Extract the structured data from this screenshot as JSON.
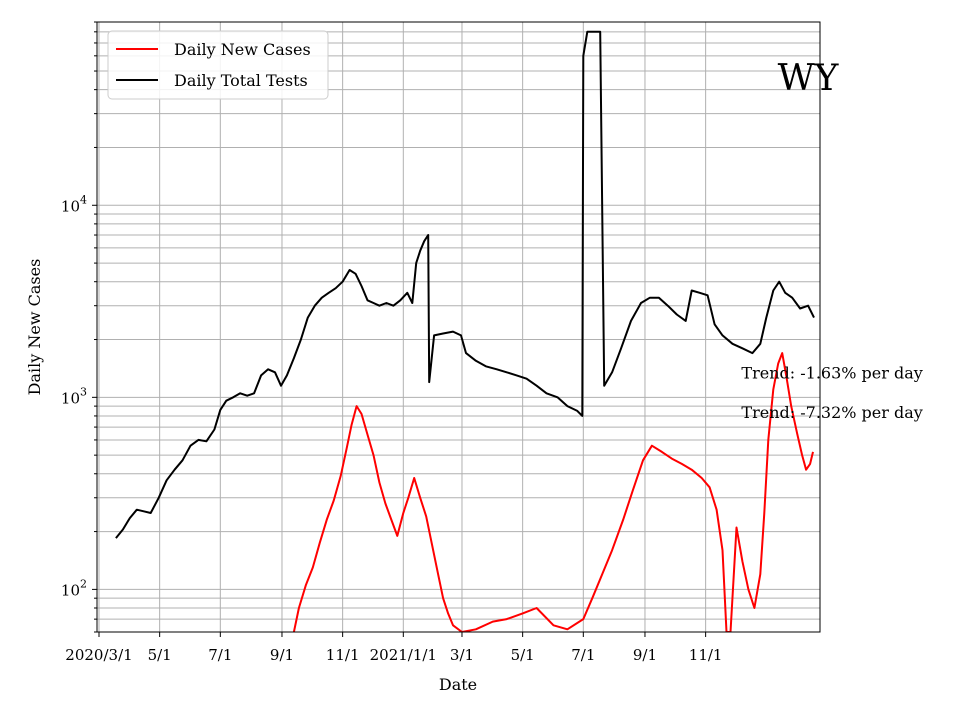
{
  "chart_data": {
    "type": "line",
    "title": "",
    "state_label": "WY",
    "xlabel": "Date",
    "ylabel": "Daily New Cases",
    "y_scale": "log",
    "ylim": [
      60,
      90000
    ],
    "xlim": [
      "2020-02-28",
      "2022-02-24"
    ],
    "grid": true,
    "legend_position": "top-left",
    "x_ticks": [
      {
        "date": "2020-03-01",
        "label": "2020/3/1"
      },
      {
        "date": "2020-05-01",
        "label": "5/1"
      },
      {
        "date": "2020-07-01",
        "label": "7/1"
      },
      {
        "date": "2020-09-01",
        "label": "9/1"
      },
      {
        "date": "2020-11-01",
        "label": "11/1"
      },
      {
        "date": "2021-01-01",
        "label": "2021/1/1"
      },
      {
        "date": "2021-03-01",
        "label": "3/1"
      },
      {
        "date": "2021-05-01",
        "label": "5/1"
      },
      {
        "date": "2021-07-01",
        "label": "7/1"
      },
      {
        "date": "2021-09-01",
        "label": "9/1"
      },
      {
        "date": "2021-11-01",
        "label": "11/1"
      }
    ],
    "y_major_ticks": [
      {
        "value": 100,
        "base": "10",
        "exp": "2"
      },
      {
        "value": 1000,
        "base": "10",
        "exp": "3"
      },
      {
        "value": 10000,
        "base": "10",
        "exp": "4"
      }
    ],
    "series": [
      {
        "name": "Daily New Cases",
        "color": "#ff0000",
        "points": [
          [
            "2020-09-13",
            60
          ],
          [
            "2020-09-18",
            80
          ],
          [
            "2020-09-25",
            105
          ],
          [
            "2020-10-02",
            130
          ],
          [
            "2020-10-09",
            175
          ],
          [
            "2020-10-16",
            230
          ],
          [
            "2020-10-23",
            290
          ],
          [
            "2020-10-30",
            390
          ],
          [
            "2020-11-05",
            540
          ],
          [
            "2020-11-10",
            720
          ],
          [
            "2020-11-15",
            900
          ],
          [
            "2020-11-20",
            820
          ],
          [
            "2020-11-26",
            640
          ],
          [
            "2020-12-02",
            500
          ],
          [
            "2020-12-08",
            360
          ],
          [
            "2020-12-14",
            280
          ],
          [
            "2020-12-20",
            230
          ],
          [
            "2020-12-26",
            190
          ],
          [
            "2021-01-01",
            250
          ],
          [
            "2021-01-06",
            300
          ],
          [
            "2021-01-12",
            380
          ],
          [
            "2021-01-18",
            300
          ],
          [
            "2021-01-24",
            240
          ],
          [
            "2021-01-30",
            170
          ],
          [
            "2021-02-05",
            120
          ],
          [
            "2021-02-10",
            90
          ],
          [
            "2021-02-15",
            75
          ],
          [
            "2021-02-20",
            65
          ],
          [
            "2021-03-01",
            60
          ],
          [
            "2021-03-15",
            62
          ],
          [
            "2021-04-01",
            68
          ],
          [
            "2021-04-15",
            70
          ],
          [
            "2021-05-01",
            75
          ],
          [
            "2021-05-15",
            80
          ],
          [
            "2021-06-01",
            65
          ],
          [
            "2021-06-15",
            62
          ],
          [
            "2021-07-01",
            70
          ],
          [
            "2021-07-10",
            90
          ],
          [
            "2021-07-20",
            120
          ],
          [
            "2021-07-30",
            160
          ],
          [
            "2021-08-10",
            230
          ],
          [
            "2021-08-20",
            330
          ],
          [
            "2021-08-30",
            470
          ],
          [
            "2021-09-08",
            560
          ],
          [
            "2021-09-18",
            520
          ],
          [
            "2021-09-28",
            480
          ],
          [
            "2021-10-08",
            450
          ],
          [
            "2021-10-18",
            420
          ],
          [
            "2021-10-28",
            380
          ],
          [
            "2021-11-05",
            340
          ],
          [
            "2021-11-12",
            260
          ],
          [
            "2021-11-18",
            160
          ],
          [
            "2021-11-22",
            60
          ],
          [
            "2021-11-26",
            60
          ],
          [
            "2021-12-02",
            210
          ],
          [
            "2021-12-08",
            140
          ],
          [
            "2021-12-14",
            100
          ],
          [
            "2021-12-20",
            80
          ],
          [
            "2021-12-26",
            120
          ],
          [
            "2021-12-30",
            250
          ],
          [
            "2022-01-03",
            600
          ],
          [
            "2022-01-08",
            1100
          ],
          [
            "2022-01-13",
            1500
          ],
          [
            "2022-01-17",
            1700
          ],
          [
            "2022-01-21",
            1300
          ],
          [
            "2022-01-26",
            900
          ],
          [
            "2022-02-01",
            650
          ],
          [
            "2022-02-06",
            500
          ],
          [
            "2022-02-10",
            420
          ],
          [
            "2022-02-14",
            450
          ],
          [
            "2022-02-17",
            520
          ]
        ]
      },
      {
        "name": "Daily Total Tests",
        "color": "#000000",
        "points": [
          [
            "2020-03-18",
            185
          ],
          [
            "2020-03-25",
            205
          ],
          [
            "2020-04-01",
            235
          ],
          [
            "2020-04-08",
            260
          ],
          [
            "2020-04-15",
            255
          ],
          [
            "2020-04-22",
            250
          ],
          [
            "2020-04-30",
            300
          ],
          [
            "2020-05-08",
            370
          ],
          [
            "2020-05-16",
            420
          ],
          [
            "2020-05-24",
            470
          ],
          [
            "2020-06-01",
            560
          ],
          [
            "2020-06-09",
            600
          ],
          [
            "2020-06-17",
            590
          ],
          [
            "2020-06-25",
            680
          ],
          [
            "2020-07-01",
            860
          ],
          [
            "2020-07-07",
            960
          ],
          [
            "2020-07-14",
            1000
          ],
          [
            "2020-07-21",
            1050
          ],
          [
            "2020-07-28",
            1020
          ],
          [
            "2020-08-04",
            1050
          ],
          [
            "2020-08-11",
            1300
          ],
          [
            "2020-08-18",
            1400
          ],
          [
            "2020-08-25",
            1350
          ],
          [
            "2020-08-31",
            1150
          ],
          [
            "2020-09-06",
            1300
          ],
          [
            "2020-09-13",
            1600
          ],
          [
            "2020-09-20",
            2000
          ],
          [
            "2020-09-27",
            2600
          ],
          [
            "2020-10-04",
            3000
          ],
          [
            "2020-10-11",
            3300
          ],
          [
            "2020-10-18",
            3500
          ],
          [
            "2020-10-25",
            3700
          ],
          [
            "2020-11-01",
            4000
          ],
          [
            "2020-11-08",
            4600
          ],
          [
            "2020-11-14",
            4400
          ],
          [
            "2020-11-20",
            3800
          ],
          [
            "2020-11-26",
            3200
          ],
          [
            "2020-12-02",
            3100
          ],
          [
            "2020-12-08",
            3000
          ],
          [
            "2020-12-15",
            3100
          ],
          [
            "2020-12-22",
            3000
          ],
          [
            "2020-12-29",
            3200
          ],
          [
            "2021-01-05",
            3500
          ],
          [
            "2021-01-10",
            3100
          ],
          [
            "2021-01-14",
            5000
          ],
          [
            "2021-01-18",
            5800
          ],
          [
            "2021-01-22",
            6500
          ],
          [
            "2021-01-26",
            7000
          ],
          [
            "2021-01-27",
            1200
          ],
          [
            "2021-02-01",
            2100
          ],
          [
            "2021-02-10",
            2150
          ],
          [
            "2021-02-20",
            2200
          ],
          [
            "2021-02-28",
            2100
          ],
          [
            "2021-03-05",
            1700
          ],
          [
            "2021-03-15",
            1550
          ],
          [
            "2021-03-25",
            1450
          ],
          [
            "2021-04-05",
            1400
          ],
          [
            "2021-04-15",
            1350
          ],
          [
            "2021-04-25",
            1300
          ],
          [
            "2021-05-05",
            1250
          ],
          [
            "2021-05-15",
            1150
          ],
          [
            "2021-05-25",
            1050
          ],
          [
            "2021-06-05",
            1000
          ],
          [
            "2021-06-15",
            900
          ],
          [
            "2021-06-25",
            850
          ],
          [
            "2021-06-30",
            800
          ],
          [
            "2021-07-01",
            60000
          ],
          [
            "2021-07-05",
            80000
          ],
          [
            "2021-07-18",
            80000
          ],
          [
            "2021-07-22",
            1150
          ],
          [
            "2021-07-30",
            1350
          ],
          [
            "2021-08-08",
            1800
          ],
          [
            "2021-08-18",
            2500
          ],
          [
            "2021-08-28",
            3100
          ],
          [
            "2021-09-06",
            3300
          ],
          [
            "2021-09-15",
            3300
          ],
          [
            "2021-09-24",
            3000
          ],
          [
            "2021-10-03",
            2700
          ],
          [
            "2021-10-12",
            2500
          ],
          [
            "2021-10-18",
            3600
          ],
          [
            "2021-10-26",
            3500
          ],
          [
            "2021-11-03",
            3400
          ],
          [
            "2021-11-10",
            2400
          ],
          [
            "2021-11-18",
            2100
          ],
          [
            "2021-11-28",
            1900
          ],
          [
            "2021-12-08",
            1800
          ],
          [
            "2021-12-18",
            1700
          ],
          [
            "2021-12-26",
            1900
          ],
          [
            "2022-01-01",
            2600
          ],
          [
            "2022-01-08",
            3600
          ],
          [
            "2022-01-14",
            4000
          ],
          [
            "2022-01-20",
            3500
          ],
          [
            "2022-01-27",
            3300
          ],
          [
            "2022-02-04",
            2900
          ],
          [
            "2022-02-12",
            3000
          ],
          [
            "2022-02-18",
            2600
          ]
        ]
      }
    ],
    "annotations": [
      {
        "text": "Trend: -1.63% per day",
        "date": "2021-12-07",
        "value": 1250
      },
      {
        "text": "Trend: -7.32% per day",
        "date": "2021-12-07",
        "value": 780
      }
    ]
  }
}
